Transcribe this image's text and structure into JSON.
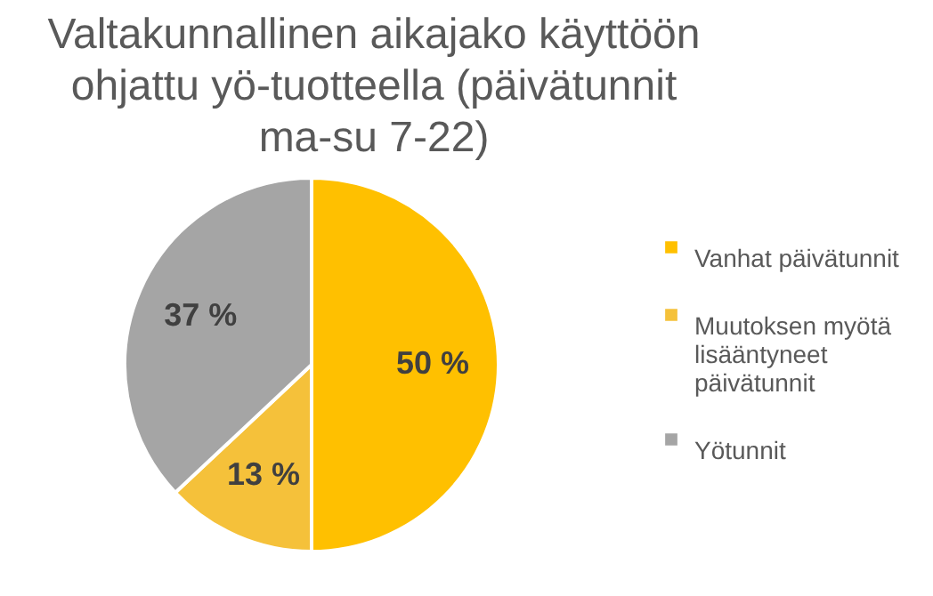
{
  "chart_data": {
    "type": "pie",
    "title": "Valtakunnallinen aikajako käyttöön ohjattu yö-tuotteella (päivätunnit ma-su 7-22)",
    "categories": [
      "Vanhat päivätunnit",
      "Muutoksen myötä lisääntyneet päivätunnit",
      "Yötunnit"
    ],
    "values": [
      50,
      13,
      37
    ],
    "colors": [
      "#ffc000",
      "#f5c13a",
      "#a5a5a5"
    ],
    "value_labels": [
      "50 %",
      "13 %",
      "37 %"
    ],
    "legend": "right"
  }
}
